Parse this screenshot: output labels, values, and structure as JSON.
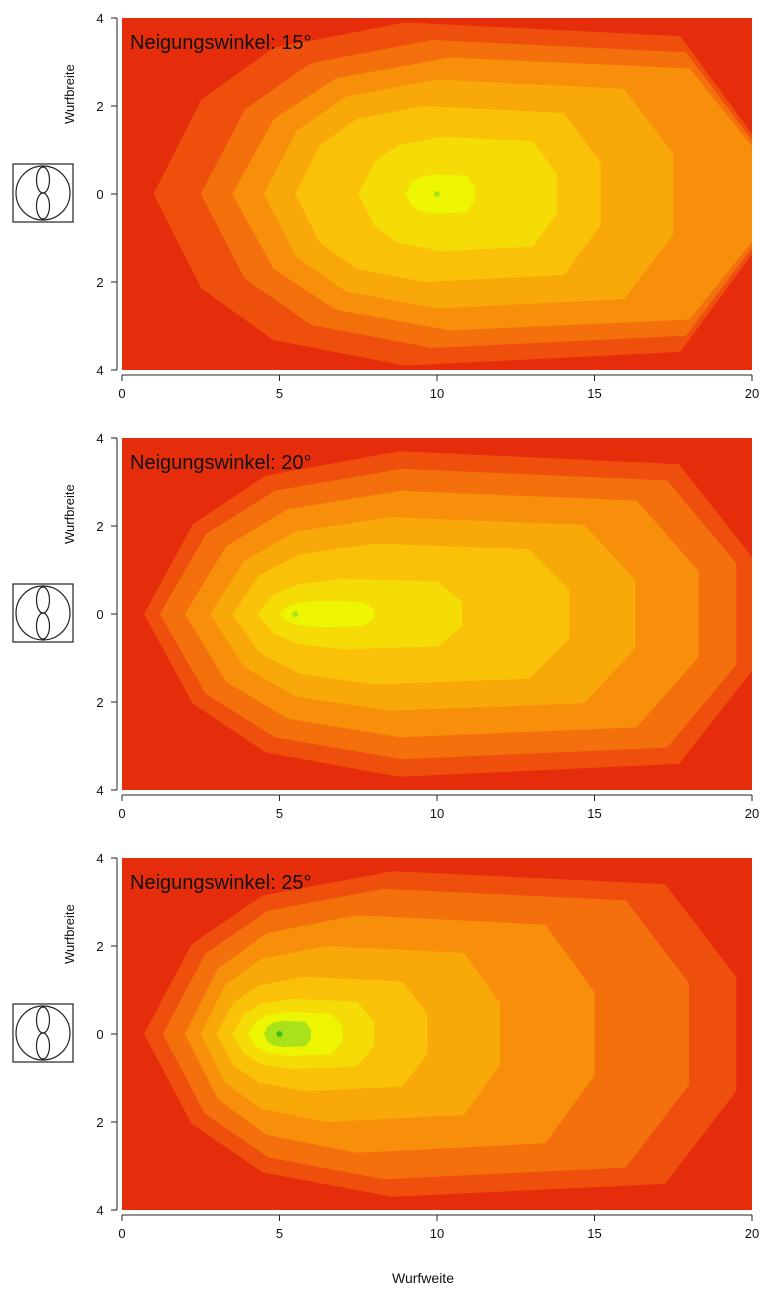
{
  "x_axis_label": "Wurfweite",
  "chart_data": [
    {
      "type": "heatmap",
      "title": "Neigungswinkel: 15°",
      "xlabel": "",
      "ylabel": "Wurfbreite",
      "xlim": [
        0,
        20
      ],
      "ylim": [
        -4,
        4
      ],
      "x_ticks": [
        "0",
        "5",
        "10",
        "15",
        "20"
      ],
      "y_ticks": [
        "4",
        "2",
        "0",
        "2",
        "4"
      ],
      "levels": [
        {
          "level": 1,
          "x_extent": [
            1,
            20
          ],
          "y_half_width": 3.9
        },
        {
          "level": 2,
          "x_extent": [
            2.5,
            20
          ],
          "y_half_width": 3.5
        },
        {
          "level": 3,
          "x_extent": [
            3.5,
            20
          ],
          "y_half_width": 3.1
        },
        {
          "level": 4,
          "x_extent": [
            4.5,
            17.5
          ],
          "y_half_width": 2.6
        },
        {
          "level": 5,
          "x_extent": [
            5.5,
            15.2
          ],
          "y_half_width": 2.0
        },
        {
          "level": 6,
          "x_extent": [
            7.5,
            13.8
          ],
          "y_half_width": 1.3
        },
        {
          "level": 7,
          "x_extent": [
            9,
            11.2
          ],
          "y_half_width": 0.45
        }
      ],
      "peak": {
        "x": 10,
        "y": 0
      }
    },
    {
      "type": "heatmap",
      "title": "Neigungswinkel: 20°",
      "xlabel": "",
      "ylabel": "Wurfbreite",
      "xlim": [
        0,
        20
      ],
      "ylim": [
        -4,
        4
      ],
      "x_ticks": [
        "0",
        "5",
        "10",
        "15",
        "20"
      ],
      "y_ticks": [
        "4",
        "2",
        "0",
        "2",
        "4"
      ],
      "levels": [
        {
          "level": 1,
          "x_extent": [
            0.7,
            20
          ],
          "y_half_width": 3.7
        },
        {
          "level": 2,
          "x_extent": [
            1.2,
            19.5
          ],
          "y_half_width": 3.3
        },
        {
          "level": 3,
          "x_extent": [
            2,
            18.3
          ],
          "y_half_width": 2.8
        },
        {
          "level": 4,
          "x_extent": [
            2.8,
            16.3
          ],
          "y_half_width": 2.2
        },
        {
          "level": 5,
          "x_extent": [
            3.5,
            14.2
          ],
          "y_half_width": 1.6
        },
        {
          "level": 6,
          "x_extent": [
            4.3,
            10.8
          ],
          "y_half_width": 0.8
        },
        {
          "level": 7,
          "x_extent": [
            5,
            8
          ],
          "y_half_width": 0.3
        }
      ],
      "peak": {
        "x": 5.5,
        "y": 0
      }
    },
    {
      "type": "heatmap",
      "title": "Neigungswinkel: 25°",
      "xlabel": "Wurfweite",
      "ylabel": "Wurfbreite",
      "xlim": [
        0,
        20
      ],
      "ylim": [
        -4,
        4
      ],
      "x_ticks": [
        "0",
        "5",
        "10",
        "15",
        "20"
      ],
      "y_ticks": [
        "4",
        "2",
        "0",
        "2",
        "4"
      ],
      "levels": [
        {
          "level": 1,
          "x_extent": [
            0.7,
            19.5
          ],
          "y_half_width": 3.7
        },
        {
          "level": 2,
          "x_extent": [
            1.3,
            18
          ],
          "y_half_width": 3.3
        },
        {
          "level": 3,
          "x_extent": [
            2,
            15
          ],
          "y_half_width": 2.7
        },
        {
          "level": 4,
          "x_extent": [
            2.5,
            12
          ],
          "y_half_width": 2.0
        },
        {
          "level": 5,
          "x_extent": [
            3,
            9.7
          ],
          "y_half_width": 1.3
        },
        {
          "level": 6,
          "x_extent": [
            3.5,
            8
          ],
          "y_half_width": 0.8
        },
        {
          "level": 7,
          "x_extent": [
            4,
            7
          ],
          "y_half_width": 0.5
        },
        {
          "level": 8,
          "x_extent": [
            4.5,
            6
          ],
          "y_half_width": 0.3
        }
      ],
      "peak": {
        "x": 5,
        "y": 0
      }
    }
  ]
}
